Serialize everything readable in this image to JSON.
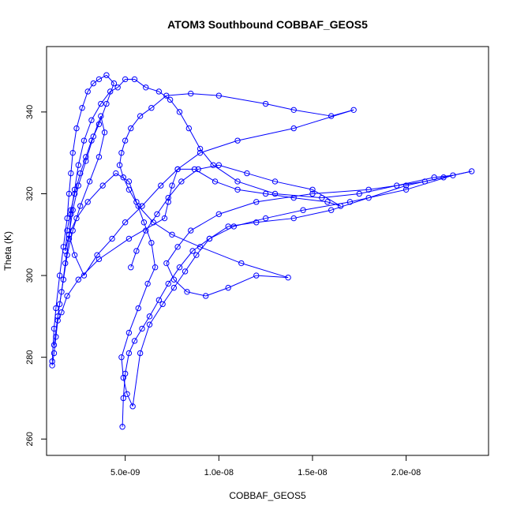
{
  "chart_data": {
    "type": "line",
    "marker": "open-circle",
    "title": "ATOM3 Southbound COBBAF_GEOS5",
    "xlabel": "COBBAF_GEOS5",
    "ylabel": "Theta (K)",
    "xlim": [
      8e-10,
      2.44e-08
    ],
    "ylim": [
      256,
      356
    ],
    "xticks": [
      5e-09,
      1e-08,
      1.5e-08,
      2e-08
    ],
    "xtick_labels": [
      "5.0e-09",
      "1.0e-08",
      "1.5e-08",
      "2.0e-08"
    ],
    "yticks": [
      260,
      280,
      300,
      320,
      340
    ],
    "ytick_labels": [
      "260",
      "280",
      "300",
      "320",
      "340"
    ],
    "grid": false,
    "series_color": "#0000ff",
    "series": [
      {
        "name": "",
        "x": [
          1.1e-09,
          1.2e-09,
          1.3e-09,
          1.5e-09,
          1.7e-09,
          1.9e-09,
          2e-09,
          2.1e-09,
          2.2e-09,
          2.4e-09,
          2.7e-09,
          3e-09,
          3.3e-09,
          3.6e-09,
          4e-09,
          4.4e-09,
          4e-09,
          3.6e-09,
          3.2e-09,
          2.9e-09,
          2.6e-09,
          2.3e-09,
          2.1e-09,
          1.9e-09,
          1.8e-09,
          2e-09,
          2.4e-09,
          3e-09,
          3.8e-09,
          4.5e-09,
          5.2e-09,
          5.6e-09,
          6e-09,
          6.4e-09,
          6.6e-09,
          6.2e-09,
          5.7e-09,
          5.2e-09,
          4.8e-09,
          4.9e-09,
          5.1e-09,
          5.4e-09,
          5.8e-09,
          6.3e-09,
          7e-09,
          7.6e-09,
          8.2e-09,
          8.8e-09,
          9.5e-09,
          1.05e-08,
          1.2e-08,
          1.4e-08,
          1.6e-08,
          1.8e-08,
          2e-08,
          2.2e-08,
          2.35e-08,
          2.1e-08,
          1.8e-08,
          1.5e-08,
          1.2e-08,
          1e-08,
          8.5e-09,
          7.8e-09,
          7.2e-09,
          7.6e-09,
          8.3e-09,
          9.3e-09,
          1.05e-08,
          1.2e-08,
          1.37e-08,
          1.12e-08,
          9e-09,
          7.5e-09,
          6.5e-09,
          5.7e-09,
          5.2e-09,
          4.9e-09,
          4.7e-09,
          4.8e-09,
          5e-09,
          5.3e-09,
          5.8e-09,
          6.4e-09,
          7.2e-09,
          8.5e-09,
          1e-08,
          1.25e-08,
          1.4e-08,
          1.6e-08,
          1.72e-08,
          1.4e-08,
          1.1e-08,
          9e-09,
          7.8e-09,
          7.5e-09,
          7.3e-09,
          7.1e-09,
          5.2e-09,
          3.6e-09,
          2.5e-09,
          1.9e-09,
          1.6e-09,
          1.4e-09,
          1.3e-09,
          1.2e-09,
          1.1e-09
        ],
        "y": [
          279,
          287,
          292,
          300,
          307,
          314,
          320,
          325,
          330,
          336,
          341,
          345,
          347,
          348,
          349,
          347,
          342,
          337,
          333,
          329,
          325,
          320,
          316,
          311,
          306,
          310,
          314,
          318,
          322,
          325,
          323,
          318,
          313,
          308,
          302,
          298,
          292,
          286,
          280,
          275,
          271,
          268,
          281,
          288,
          293,
          297,
          301,
          305,
          309,
          312,
          313,
          314,
          316,
          319,
          322,
          324,
          325.5,
          323,
          321,
          320,
          318,
          315,
          311,
          307,
          303,
          299,
          296,
          295,
          297,
          300,
          299.5,
          303,
          307,
          310,
          313,
          317,
          321,
          324,
          327,
          330,
          333,
          336,
          339,
          341,
          344,
          344.5,
          344,
          342,
          340.5,
          339,
          340.5,
          336,
          333,
          330,
          326,
          322,
          318,
          314,
          309,
          304,
          299,
          295,
          291,
          289,
          285,
          281,
          278
        ]
      },
      {
        "name": "",
        "x": [
          1.2e-09,
          1.4e-09,
          1.6e-09,
          1.8e-09,
          2e-09,
          2.1e-09,
          2.3e-09,
          2.5e-09,
          2.8e-09,
          3.2e-09,
          3.7e-09,
          4.2e-09,
          4.6e-09,
          5e-09,
          5.5e-09,
          6.1e-09,
          6.8e-09,
          7.4e-09,
          7.9e-09,
          8.4e-09,
          9e-09,
          9.7e-09,
          1.1e-08,
          1.3e-08,
          1.55e-08,
          1.75e-08,
          1.95e-08,
          2.15e-08,
          2.25e-08,
          2e-08,
          1.7e-08,
          1.45e-08,
          1.25e-08,
          1.08e-08,
          9.5e-09,
          8.6e-09,
          7.9e-09,
          7.3e-09,
          6.8e-09,
          6.3e-09,
          5.9e-09,
          5.5e-09,
          5.2e-09,
          5e-09,
          4.9e-09,
          4.85e-09
        ],
        "y": [
          283,
          290,
          296,
          303,
          309,
          315,
          321,
          327,
          333,
          338,
          342,
          345,
          346,
          348,
          348,
          346,
          345,
          343,
          340,
          336,
          331,
          327,
          323,
          320,
          319,
          320,
          322,
          324,
          324.5,
          321,
          318,
          316,
          314,
          312,
          309,
          306,
          302,
          298,
          294,
          290,
          287,
          284,
          281,
          276,
          270,
          263
        ]
      },
      {
        "name": "",
        "x": [
          1.5e-09,
          1.7e-09,
          1.9e-09,
          2.2e-09,
          2.6e-09,
          3.1e-09,
          3.6e-09,
          3.9e-09,
          3.7e-09,
          3.3e-09,
          2.9e-09,
          2.5e-09,
          2.2e-09,
          2e-09,
          2.3e-09,
          2.8e-09,
          3.5e-09,
          4.3e-09,
          5e-09,
          5.9e-09,
          6.9e-09,
          7.8e-09,
          8.7e-09,
          9.8e-09,
          1.1e-08,
          1.25e-08,
          1.4e-08,
          1.58e-08,
          1.65e-08,
          1.5e-08,
          1.3e-08,
          1.15e-08,
          1e-08,
          8.9e-09,
          8e-09,
          7.3e-09,
          6.7e-09,
          6.1e-09,
          5.6e-09,
          5.3e-09
        ],
        "y": [
          293,
          299,
          305,
          311,
          317,
          323,
          329,
          335,
          339,
          334,
          328,
          322,
          316,
          310,
          305,
          300,
          305,
          309,
          313,
          317,
          322,
          326,
          326,
          323,
          321,
          320,
          319,
          318,
          317,
          321,
          323,
          325,
          327,
          326,
          323,
          319,
          315,
          311,
          306,
          302
        ]
      }
    ]
  }
}
